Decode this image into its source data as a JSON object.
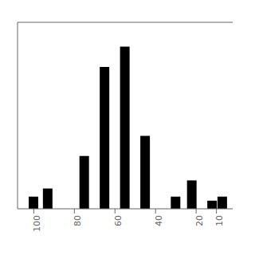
{
  "chart_data": {
    "type": "bar",
    "x": [
      100,
      93,
      75,
      65,
      55,
      45,
      30,
      22,
      12,
      7
    ],
    "values": [
      3,
      5,
      13,
      35,
      40,
      18,
      3,
      7,
      2,
      3
    ],
    "color": "#000000",
    "xlim": [
      108,
      2
    ],
    "xticks": [
      100,
      80,
      60,
      40,
      20,
      10
    ],
    "ylim": [
      0,
      46
    ],
    "tick_labels": "x"
  }
}
